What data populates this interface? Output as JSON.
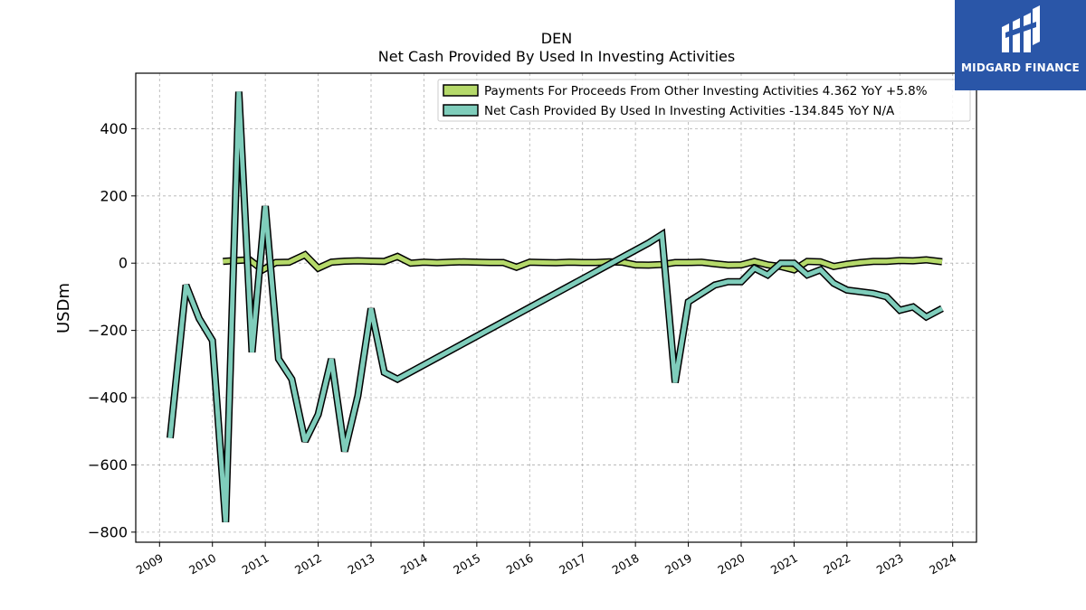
{
  "title_line1": "DEN",
  "title_line2": "Net Cash Provided By Used In Investing Activities",
  "ylabel": "USDm",
  "logo_text": "MIDGARD FINANCE",
  "chart_data": {
    "type": "line",
    "title": "DEN\nNet Cash Provided By Used In Investing Activities",
    "xlabel": "",
    "ylabel": "USDm",
    "xlim": [
      2008.55,
      2024.45
    ],
    "ylim": [
      -830,
      565
    ],
    "x_ticks": [
      2009,
      2010,
      2011,
      2012,
      2013,
      2014,
      2015,
      2016,
      2017,
      2018,
      2019,
      2020,
      2021,
      2022,
      2023,
      2024
    ],
    "y_ticks": [
      -800,
      -600,
      -400,
      -200,
      0,
      200,
      400
    ],
    "y_tick_labels": [
      "−800",
      "−600",
      "−400",
      "−200",
      "0",
      "200",
      "400"
    ],
    "grid": true,
    "legend_position": "top-right",
    "series": [
      {
        "name": "Payments For Proceeds From Other Investing Activities",
        "legend_label": "Payments For Proceeds From Other Investing Activities  4.362 YoY +5.8%",
        "color": "#b5d96a",
        "x": [
          2010.2,
          2010.45,
          2010.7,
          2010.95,
          2011.2,
          2011.45,
          2011.75,
          2012.0,
          2012.25,
          2012.5,
          2012.75,
          2013.0,
          2013.25,
          2013.5,
          2013.75,
          2014.0,
          2014.25,
          2014.5,
          2014.75,
          2015.0,
          2015.25,
          2015.5,
          2015.75,
          2016.0,
          2016.25,
          2016.5,
          2016.75,
          2017.0,
          2017.25,
          2017.5,
          2017.75,
          2018.0,
          2018.25,
          2018.5,
          2018.75,
          2019.0,
          2019.25,
          2019.5,
          2019.75,
          2020.0,
          2020.25,
          2020.5,
          2020.75,
          2021.0,
          2021.25,
          2021.5,
          2021.75,
          2022.0,
          2022.25,
          2022.5,
          2022.75,
          2023.0,
          2023.25,
          2023.5,
          2023.8
        ],
        "y": [
          5,
          8,
          10,
          -20,
          2,
          3,
          25,
          -15,
          3,
          6,
          7,
          6,
          5,
          20,
          0,
          3,
          1,
          3,
          4,
          3,
          2,
          2,
          -12,
          3,
          2,
          1,
          3,
          2,
          2,
          4,
          3,
          -5,
          -6,
          -4,
          2,
          2,
          3,
          -2,
          -6,
          -5,
          5,
          -5,
          -10,
          -20,
          5,
          4,
          -10,
          -3,
          2,
          5,
          5,
          8,
          7,
          10,
          4.362
        ]
      },
      {
        "name": "Net Cash Provided By Used In Investing Activities",
        "legend_label": "Net Cash Provided By Used In Investing Activities  -134.845 YoY N/A",
        "color": "#7fcdbb",
        "x": [
          2009.2,
          2009.5,
          2009.75,
          2010.0,
          2010.25,
          2010.5,
          2010.75,
          2011.0,
          2011.25,
          2011.5,
          2011.75,
          2012.0,
          2012.25,
          2012.5,
          2012.75,
          2013.0,
          2013.25,
          2013.5,
          2018.25,
          2018.5,
          2018.75,
          2019.0,
          2019.25,
          2019.5,
          2019.75,
          2020.0,
          2020.25,
          2020.5,
          2020.75,
          2021.0,
          2021.25,
          2021.5,
          2021.75,
          2022.0,
          2022.25,
          2022.5,
          2022.75,
          2023.0,
          2023.25,
          2023.5,
          2023.8
        ],
        "y": [
          -520,
          -65,
          -165,
          -230,
          -770,
          510,
          -265,
          170,
          -285,
          -345,
          -530,
          -450,
          -285,
          -560,
          -395,
          -135,
          -325,
          -345,
          60,
          85,
          -355,
          -115,
          -90,
          -65,
          -55,
          -55,
          -15,
          -35,
          0,
          0,
          -35,
          -20,
          -60,
          -80,
          -85,
          -90,
          -100,
          -140,
          -130,
          -160,
          -134.845
        ]
      }
    ]
  }
}
